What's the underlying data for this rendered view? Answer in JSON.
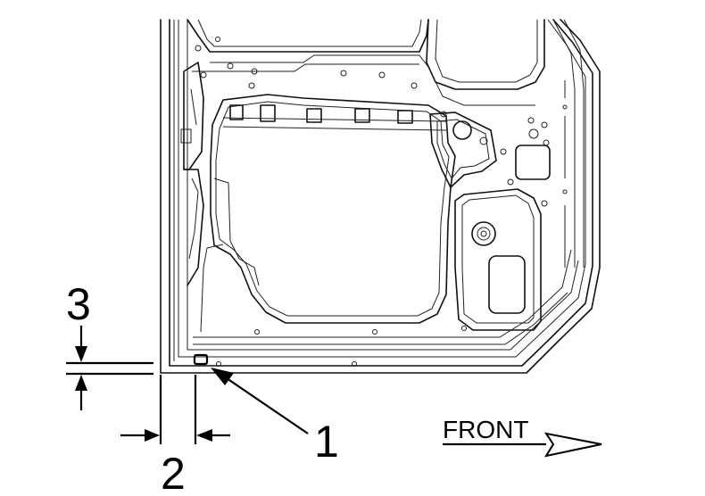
{
  "callouts": {
    "one": "1",
    "two": "2",
    "three": "3"
  },
  "direction_label": "FRONT"
}
